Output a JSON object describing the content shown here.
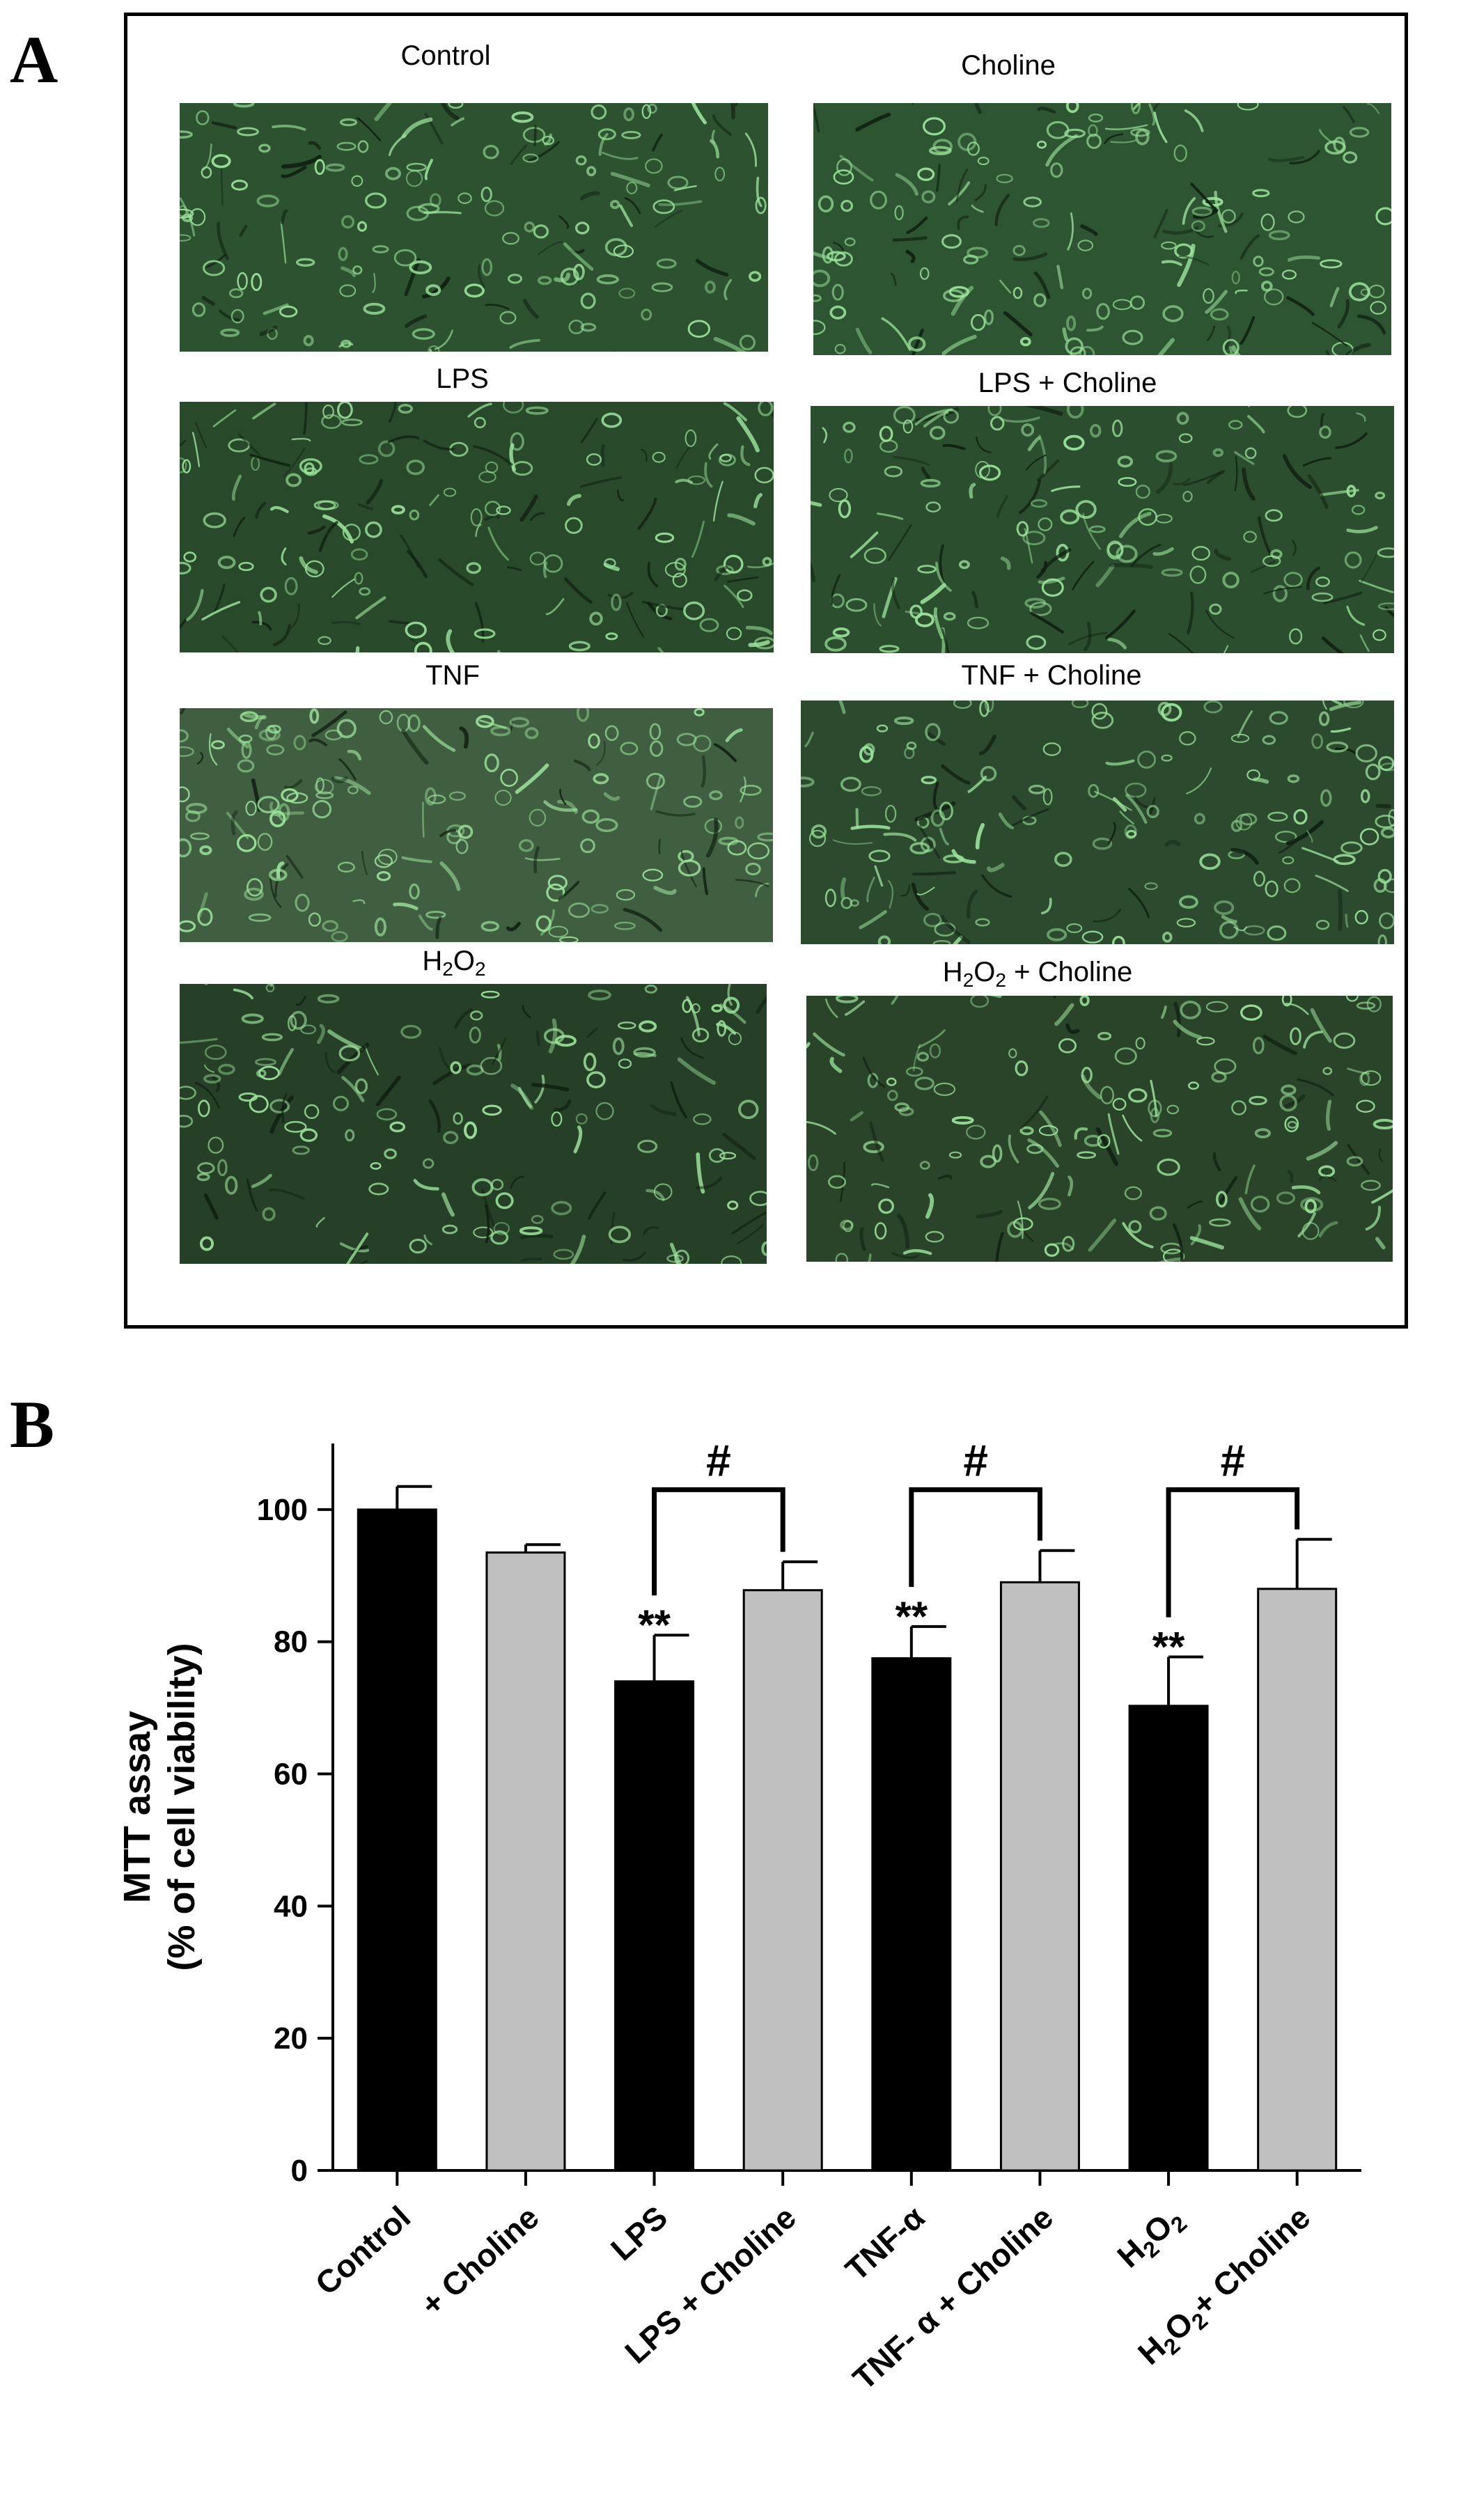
{
  "panel_a": {
    "letter": "A",
    "tiles": [
      {
        "label": "Control",
        "sub": "",
        "tail": "",
        "tone": "#2c5230"
      },
      {
        "label": "Choline",
        "sub": "",
        "tail": "",
        "tone": "#2e5532"
      },
      {
        "label": "LPS",
        "sub": "",
        "tail": "",
        "tone": "#284a2b"
      },
      {
        "label": "LPS + Choline",
        "sub": "",
        "tail": "",
        "tone": "#2b4f2e"
      },
      {
        "label": "TNF",
        "sub": "",
        "tail": "",
        "tone": "#405e40"
      },
      {
        "label": "TNF + Choline",
        "sub": "",
        "tail": "",
        "tone": "#2c4a2e"
      },
      {
        "label": "H",
        "sub": "2",
        "tail": "O",
        "sub2": "2",
        "after": "",
        "tone": "#263f27"
      },
      {
        "label": "H",
        "sub": "2",
        "tail": "O",
        "sub2": "2",
        "after": " + Choline",
        "tone": "#294429"
      }
    ],
    "accent_color": "#9be39b"
  },
  "panel_b": {
    "letter": "B"
  },
  "chart_data": {
    "type": "bar",
    "ylabel_line1": "MTT assay",
    "ylabel_line2": "(% of cell viability)",
    "ylim": [
      0,
      110
    ],
    "yticks": [
      "0",
      "20",
      "40",
      "60",
      "80",
      "100"
    ],
    "categories": [
      "Control",
      "+ Choline",
      "LPS",
      "LPS + Choline",
      "TNF-α",
      "TNF- α + Choline",
      "H2O2",
      "H2O2+ Choline"
    ],
    "category_parts": [
      [
        [
          "Control",
          ""
        ]
      ],
      [
        [
          "+ Choline",
          ""
        ]
      ],
      [
        [
          "LPS",
          ""
        ]
      ],
      [
        [
          "LPS + Choline",
          ""
        ]
      ],
      [
        [
          "TNF-α",
          ""
        ]
      ],
      [
        [
          "TNF- α + Choline",
          ""
        ]
      ],
      [
        [
          "H",
          ""
        ],
        [
          "2",
          "sub"
        ],
        [
          "O",
          ""
        ],
        [
          "2",
          "sub"
        ]
      ],
      [
        [
          "H",
          ""
        ],
        [
          "2",
          "sub"
        ],
        [
          "O",
          ""
        ],
        [
          "2",
          "sub"
        ],
        [
          "+ Choline",
          ""
        ]
      ]
    ],
    "values": [
      100,
      93.5,
      74,
      87.8,
      77.5,
      89,
      70.3,
      88
    ],
    "errors": [
      3.5,
      1.2,
      7,
      4.3,
      4.8,
      4.8,
      7.4,
      7.5
    ],
    "colors": [
      "#000000",
      "#c0c0c0",
      "#000000",
      "#c0c0c0",
      "#000000",
      "#c0c0c0",
      "#000000",
      "#c0c0c0"
    ],
    "annotations": [
      {
        "category_index": 2,
        "text": "**"
      },
      {
        "category_index": 4,
        "text": "**"
      },
      {
        "category_index": 6,
        "text": "**"
      }
    ],
    "brackets": [
      {
        "from": 2,
        "to": 3,
        "level": 103,
        "text": "#"
      },
      {
        "from": 4,
        "to": 5,
        "level": 103,
        "text": "#"
      },
      {
        "from": 6,
        "to": 7,
        "level": 103,
        "text": "#"
      }
    ],
    "grid": false
  }
}
